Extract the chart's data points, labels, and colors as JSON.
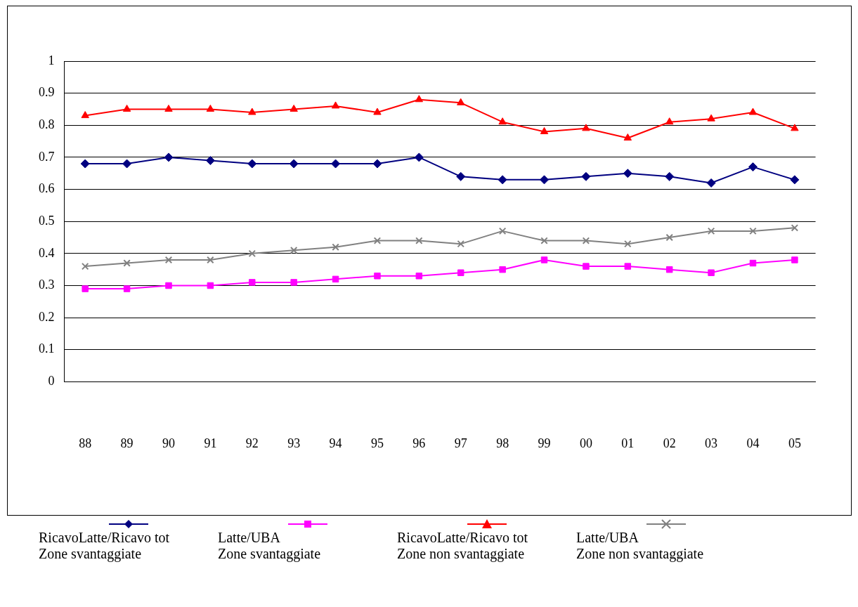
{
  "chart_data": {
    "type": "line",
    "categories": [
      "88",
      "89",
      "90",
      "91",
      "92",
      "93",
      "94",
      "95",
      "96",
      "97",
      "98",
      "99",
      "00",
      "01",
      "02",
      "03",
      "04",
      "05"
    ],
    "ylim": [
      0,
      1
    ],
    "yticks": [
      0,
      0.1,
      0.2,
      0.3,
      0.4,
      0.5,
      0.6,
      0.7,
      0.8,
      0.9,
      1
    ],
    "grid": "y",
    "legend": "bottom",
    "series": [
      {
        "name": "RicavoLatte/Ricavo tot\nZone svantaggiate",
        "color": "#000080",
        "marker": "diamond",
        "values": [
          0.68,
          0.68,
          0.7,
          0.69,
          0.68,
          0.68,
          0.68,
          0.68,
          0.7,
          0.64,
          0.63,
          0.63,
          0.64,
          0.65,
          0.64,
          0.62,
          0.67,
          0.63
        ]
      },
      {
        "name": "Latte/UBA\n Zone svantaggiate",
        "color": "#ff00ff",
        "marker": "square",
        "values": [
          0.29,
          0.29,
          0.3,
          0.3,
          0.31,
          0.31,
          0.32,
          0.33,
          0.33,
          0.34,
          0.35,
          0.38,
          0.36,
          0.36,
          0.35,
          0.34,
          0.37,
          0.38
        ]
      },
      {
        "name": "RicavoLatte/Ricavo tot\nZone non svantaggiate",
        "color": "#ff0000",
        "marker": "triangle",
        "values": [
          0.83,
          0.85,
          0.85,
          0.85,
          0.84,
          0.85,
          0.86,
          0.84,
          0.88,
          0.87,
          0.81,
          0.78,
          0.79,
          0.76,
          0.81,
          0.82,
          0.84,
          0.79
        ]
      },
      {
        "name": "Latte/UBA\n Zone non svantaggiate",
        "color": "#808080",
        "marker": "cross",
        "values": [
          0.36,
          0.37,
          0.38,
          0.38,
          0.4,
          0.41,
          0.42,
          0.44,
          0.44,
          0.43,
          0.47,
          0.44,
          0.44,
          0.43,
          0.45,
          0.47,
          0.47,
          0.48
        ]
      }
    ]
  }
}
